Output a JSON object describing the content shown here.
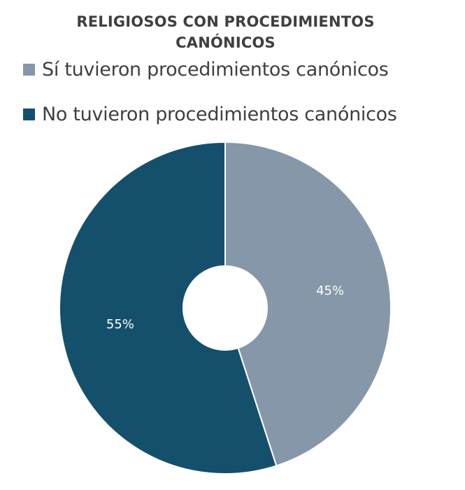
{
  "chart_data": {
    "type": "pie",
    "title": [
      "RELIGIOSOS CON PROCEDIMIENTOS",
      "CANÓNICOS"
    ],
    "categories": [
      "Sí tuvieron procedimientos canónicos",
      "No tuvieron procedimientos canónicos"
    ],
    "values": [
      45,
      55
    ],
    "data_labels": [
      "45%",
      "55%"
    ],
    "colors": [
      "#8597a9",
      "#14506c"
    ],
    "legend_position": "top",
    "style": "donut"
  }
}
